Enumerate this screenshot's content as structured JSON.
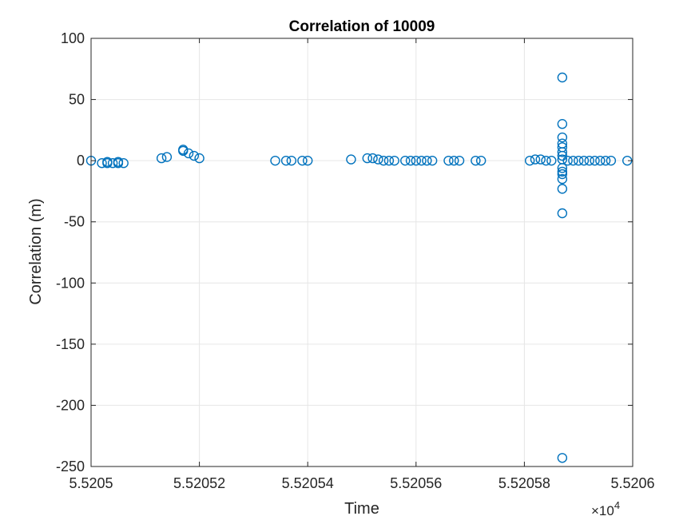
{
  "chart_data": {
    "type": "scatter",
    "title": "Correlation of 10009",
    "xlabel": "Time",
    "ylabel": "Correlation (m)",
    "x_exponent_label": "×10",
    "x_exponent_power": "4",
    "xlim": [
      5.5205,
      5.5206
    ],
    "ylim": [
      -250,
      100
    ],
    "xticks": [
      5.5205,
      5.52052,
      5.52054,
      5.52056,
      5.52058,
      5.5206
    ],
    "xtick_labels": [
      "5.5205",
      "5.52052",
      "5.52054",
      "5.52056",
      "5.52058",
      "5.5206"
    ],
    "yticks": [
      100,
      50,
      0,
      -50,
      -100,
      -150,
      -200,
      -250
    ],
    "ytick_labels": [
      "100",
      "50",
      "0",
      "-50",
      "-100",
      "-150",
      "-200",
      "-250"
    ],
    "grid": true,
    "marker": "circle-open",
    "color": "#0072BD",
    "points": [
      [
        5.5205,
        0
      ],
      [
        5.520502,
        -2
      ],
      [
        5.520503,
        -2
      ],
      [
        5.520503,
        -1
      ],
      [
        5.520504,
        -2
      ],
      [
        5.520505,
        -2
      ],
      [
        5.520505,
        -1
      ],
      [
        5.520506,
        -2
      ],
      [
        5.520513,
        2
      ],
      [
        5.520514,
        3
      ],
      [
        5.520517,
        9
      ],
      [
        5.520517,
        8
      ],
      [
        5.520518,
        6
      ],
      [
        5.520519,
        4
      ],
      [
        5.52052,
        2
      ],
      [
        5.520534,
        0
      ],
      [
        5.520536,
        0
      ],
      [
        5.520537,
        0
      ],
      [
        5.520539,
        0
      ],
      [
        5.52054,
        0
      ],
      [
        5.520548,
        1
      ],
      [
        5.520551,
        2
      ],
      [
        5.520552,
        2
      ],
      [
        5.520553,
        1
      ],
      [
        5.520554,
        0
      ],
      [
        5.520555,
        0
      ],
      [
        5.520556,
        0
      ],
      [
        5.520558,
        0
      ],
      [
        5.520559,
        0
      ],
      [
        5.52056,
        0
      ],
      [
        5.520561,
        0
      ],
      [
        5.520562,
        0
      ],
      [
        5.520563,
        0
      ],
      [
        5.520566,
        0
      ],
      [
        5.520567,
        0
      ],
      [
        5.520568,
        0
      ],
      [
        5.520571,
        0
      ],
      [
        5.520572,
        0
      ],
      [
        5.520581,
        0
      ],
      [
        5.520582,
        1
      ],
      [
        5.520583,
        1
      ],
      [
        5.520584,
        0
      ],
      [
        5.520585,
        0
      ],
      [
        5.520587,
        68
      ],
      [
        5.520587,
        30
      ],
      [
        5.520587,
        19
      ],
      [
        5.520587,
        14
      ],
      [
        5.520587,
        11
      ],
      [
        5.520587,
        7
      ],
      [
        5.520587,
        4
      ],
      [
        5.520587,
        1
      ],
      [
        5.520587,
        -6
      ],
      [
        5.520587,
        -9
      ],
      [
        5.520587,
        -11
      ],
      [
        5.520587,
        -15
      ],
      [
        5.520587,
        -23
      ],
      [
        5.520587,
        -43
      ],
      [
        5.520587,
        -243
      ],
      [
        5.520588,
        0
      ],
      [
        5.520589,
        0
      ],
      [
        5.52059,
        0
      ],
      [
        5.520591,
        0
      ],
      [
        5.520592,
        0
      ],
      [
        5.520593,
        0
      ],
      [
        5.520594,
        0
      ],
      [
        5.520595,
        0
      ],
      [
        5.520596,
        0
      ],
      [
        5.520599,
        0
      ]
    ]
  }
}
